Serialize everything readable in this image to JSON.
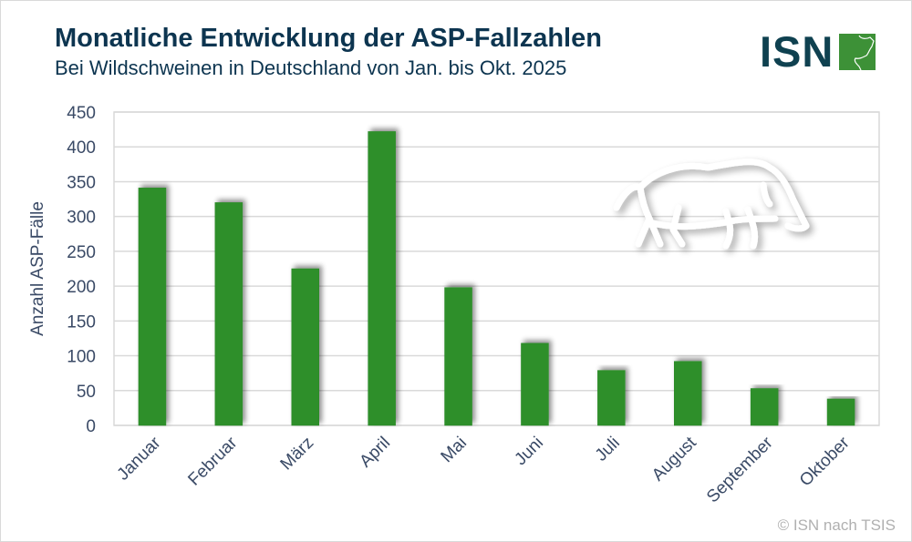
{
  "header": {
    "title": "Monatliche Entwicklung der ASP-Fallzahlen",
    "subtitle": "Bei Wildschweinen in Deutschland von Jan. bis Okt. 2025"
  },
  "logo": {
    "text": "ISN",
    "brand_color": "#0f4150",
    "accent_color": "#3d9137"
  },
  "footer": {
    "copyright": "© ISN nach TSIS"
  },
  "colors": {
    "bar": "#2f8f2c",
    "text": "#3a4a66",
    "grid": "#d9d9d9"
  },
  "illustration": {
    "icon": "wild-boar-icon"
  },
  "chart_data": {
    "type": "bar",
    "title": "Monatliche Entwicklung der ASP-Fallzahlen",
    "subtitle": "Bei Wildschweinen in Deutschland von Jan. bis Okt. 2025",
    "xlabel": "",
    "ylabel": "Anzahl ASP-Fälle",
    "categories": [
      "Januar",
      "Februar",
      "März",
      "April",
      "Mai",
      "Juni",
      "Juli",
      "August",
      "September",
      "Oktober"
    ],
    "values": [
      341,
      320,
      225,
      422,
      198,
      118,
      79,
      92,
      53,
      38
    ],
    "ylim": [
      0,
      450
    ],
    "yticks": [
      0,
      50,
      100,
      150,
      200,
      250,
      300,
      350,
      400,
      450
    ],
    "grid": true,
    "legend": "none"
  }
}
